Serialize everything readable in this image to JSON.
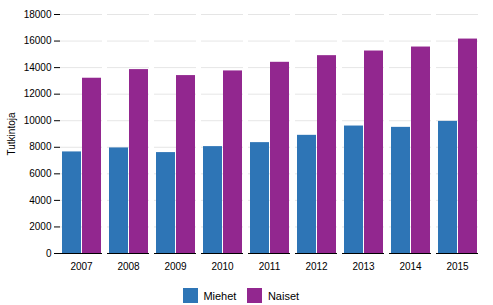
{
  "chart_data": {
    "type": "bar",
    "categories": [
      "2007",
      "2008",
      "2009",
      "2010",
      "2011",
      "2012",
      "2013",
      "2014",
      "2015"
    ],
    "series": [
      {
        "name": "Miehet",
        "color": "#2E75B6",
        "values": [
          7650,
          7950,
          7600,
          8050,
          8350,
          8900,
          9600,
          9500,
          9950
        ]
      },
      {
        "name": "Naiset",
        "color": "#92278F",
        "values": [
          13200,
          13850,
          13400,
          13750,
          14400,
          14900,
          15250,
          15550,
          16150
        ]
      }
    ],
    "ylabel": "Tutkintoja",
    "ylim": [
      0,
      18000
    ],
    "yticks": [
      0,
      2000,
      4000,
      6000,
      8000,
      10000,
      12000,
      14000,
      16000,
      18000
    ],
    "grid": true,
    "legend": "bottom"
  }
}
